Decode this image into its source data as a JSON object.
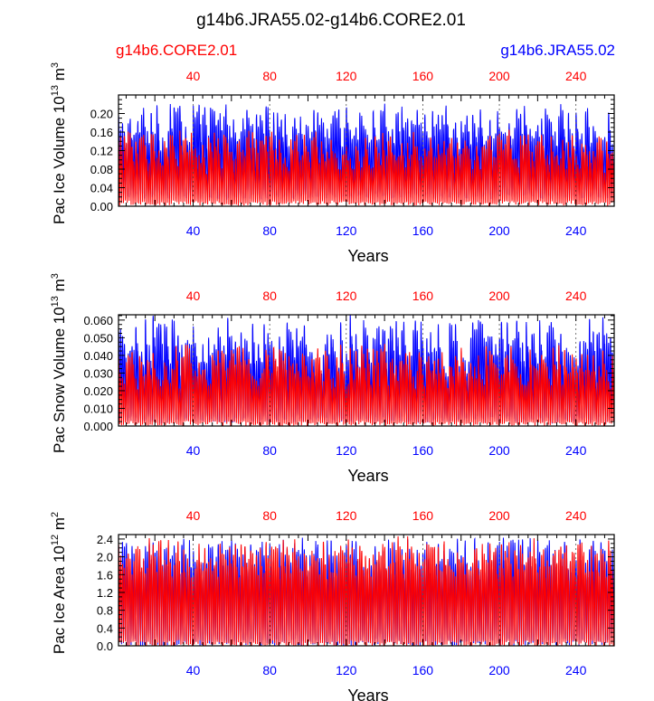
{
  "title": "g14b6.JRA55.02-g14b6.CORE2.01",
  "legend": {
    "left": {
      "label": "g14b6.CORE2.01",
      "color": "#ff0000"
    },
    "right": {
      "label": "g14b6.JRA55.02",
      "color": "#0000ff"
    }
  },
  "colors": {
    "core": "#ff0000",
    "jra": "#0000ff",
    "axis": "#000000",
    "refline": "#555555"
  },
  "chart_data": [
    {
      "type": "line",
      "title": "",
      "xlabel": "Years",
      "ylabel_main": "Pac Ice Volume 10",
      "ylabel_exp": "13",
      "ylabel_unit": " m",
      "ylabel_unit_exp": "3",
      "xlim": [
        1,
        260
      ],
      "ylim": [
        0,
        0.24
      ],
      "yticks": [
        0.0,
        0.04,
        0.08,
        0.12,
        0.16,
        0.2
      ],
      "ytick_labels": [
        "0.00",
        "0.04",
        "0.08",
        "0.12",
        "0.16",
        "0.20"
      ],
      "xticks": [
        40,
        80,
        120,
        160,
        200,
        240
      ],
      "xtick_labels": [
        "40",
        "80",
        "120",
        "160",
        "200",
        "240"
      ],
      "ref_lines_x": [
        40,
        80,
        120,
        160,
        200,
        240
      ],
      "series": [
        {
          "name": "g14b6.JRA55.02",
          "color": "#0000ff",
          "summer_min": 0.02,
          "winter_max_mean": 0.17,
          "winter_max_range": [
            0.12,
            0.23
          ],
          "cycle_years": 1
        },
        {
          "name": "g14b6.CORE2.01",
          "color": "#ff0000",
          "summer_min": 0.005,
          "winter_max_mean": 0.115,
          "winter_max_range": [
            0.07,
            0.17
          ],
          "cycle_years": 1
        }
      ]
    },
    {
      "type": "line",
      "title": "",
      "xlabel": "Years",
      "ylabel_main": "Pac Snow Volume 10",
      "ylabel_exp": "13",
      "ylabel_unit": " m",
      "ylabel_unit_exp": "3",
      "xlim": [
        1,
        260
      ],
      "ylim": [
        0,
        0.063
      ],
      "yticks": [
        0.0,
        0.01,
        0.02,
        0.03,
        0.04,
        0.05,
        0.06
      ],
      "ytick_labels": [
        "0.000",
        "0.010",
        "0.020",
        "0.030",
        "0.040",
        "0.050",
        "0.060"
      ],
      "xticks": [
        40,
        80,
        120,
        160,
        200,
        240
      ],
      "xtick_labels": [
        "40",
        "80",
        "120",
        "160",
        "200",
        "240"
      ],
      "ref_lines_x": [
        40,
        80,
        120,
        160,
        200,
        240
      ],
      "series": [
        {
          "name": "g14b6.JRA55.02",
          "color": "#0000ff",
          "summer_min": 0.003,
          "winter_max_mean": 0.045,
          "winter_max_range": [
            0.025,
            0.062
          ],
          "cycle_years": 1
        },
        {
          "name": "g14b6.CORE2.01",
          "color": "#ff0000",
          "summer_min": 0.001,
          "winter_max_mean": 0.033,
          "winter_max_range": [
            0.02,
            0.048
          ],
          "cycle_years": 1
        }
      ]
    },
    {
      "type": "line",
      "title": "",
      "xlabel": "Years",
      "ylabel_main": "Pac Ice Area 10",
      "ylabel_exp": "12",
      "ylabel_unit": " m",
      "ylabel_unit_exp": "2",
      "xlim": [
        1,
        260
      ],
      "ylim": [
        0,
        2.5
      ],
      "yticks": [
        0.0,
        0.4,
        0.8,
        1.2,
        1.6,
        2.0,
        2.4
      ],
      "ytick_labels": [
        "0.0",
        "0.4",
        "0.8",
        "1.2",
        "1.6",
        "2.0",
        "2.4"
      ],
      "xticks": [
        40,
        80,
        120,
        160,
        200,
        240
      ],
      "xtick_labels": [
        "40",
        "80",
        "120",
        "160",
        "200",
        "240"
      ],
      "ref_lines_x": [
        40,
        80,
        120,
        160,
        200,
        240
      ],
      "series": [
        {
          "name": "g14b6.JRA55.02",
          "color": "#0000ff",
          "summer_min": 0.05,
          "winter_max_mean": 2.0,
          "winter_max_range": [
            1.6,
            2.5
          ],
          "cycle_years": 1
        },
        {
          "name": "g14b6.CORE2.01",
          "color": "#ff0000",
          "summer_min": 0.02,
          "winter_max_mean": 1.95,
          "winter_max_range": [
            1.5,
            2.5
          ],
          "cycle_years": 1
        }
      ]
    }
  ]
}
